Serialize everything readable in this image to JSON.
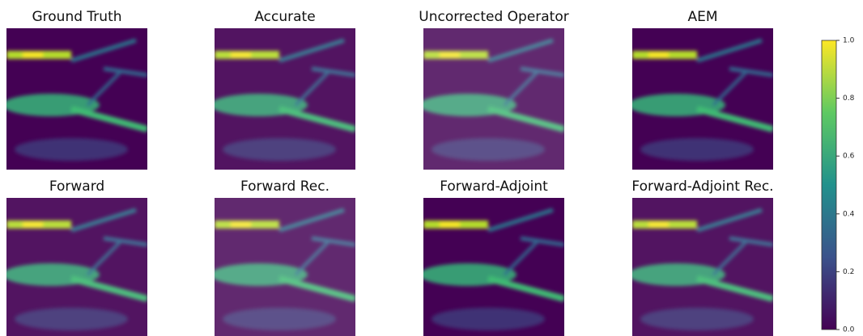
{
  "panels": [
    {
      "title": "Ground Truth"
    },
    {
      "title": "Accurate"
    },
    {
      "title": "Uncorrected Operator"
    },
    {
      "title": "AEM"
    },
    {
      "title": "Forward"
    },
    {
      "title": "Forward Rec."
    },
    {
      "title": "Forward-Adjoint"
    },
    {
      "title": "Forward-Adjoint Rec."
    }
  ],
  "colorbar": {
    "lim": [
      0,
      1
    ],
    "ticks": [
      {
        "value": 0,
        "label": "0.0"
      },
      {
        "value": 0.2,
        "label": "0.2"
      },
      {
        "value": 0.4,
        "label": "0.4"
      },
      {
        "value": 0.6,
        "label": "0.6"
      },
      {
        "value": 0.8,
        "label": "0.8"
      },
      {
        "value": 1,
        "label": "1.0"
      }
    ]
  }
}
